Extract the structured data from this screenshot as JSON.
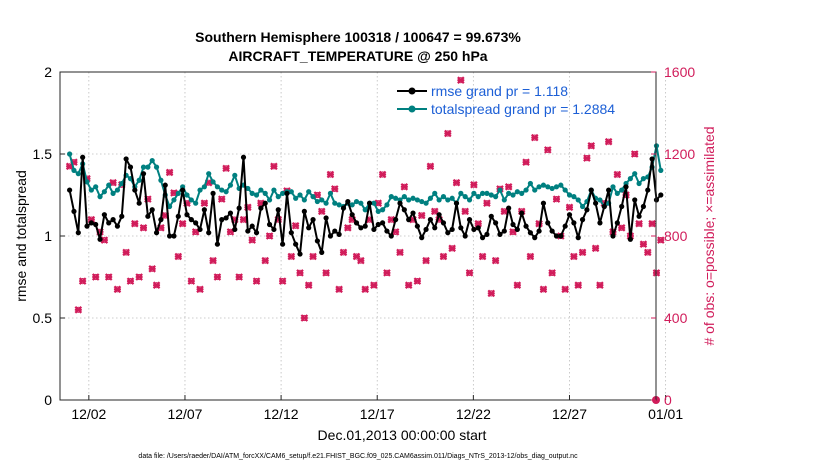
{
  "chart_data": {
    "type": "line",
    "title": "Southern Hemisphere 100318 / 100647 = 99.673%",
    "subtitle": "AIRCRAFT_TEMPERATURE @ 250 hPa",
    "xlabel": "Dec.01,2013 00:00:00 start",
    "ylabel_left": "rmse and totalspread",
    "ylabel_right": "# of obs: o=possible; ×=assimilated",
    "ylim_left": [
      0,
      2
    ],
    "ylim_right": [
      0,
      1600
    ],
    "xlim": [
      0.5,
      31.5
    ],
    "x_ticks": [
      2,
      7,
      12,
      17,
      22,
      27,
      32
    ],
    "x_tick_labels": [
      "12/02",
      "12/07",
      "12/12",
      "12/17",
      "12/22",
      "12/27",
      "01/01"
    ],
    "y_ticks_left": [
      0,
      0.5,
      1,
      1.5,
      2
    ],
    "y_tick_labels_left": [
      "0",
      "0.5",
      "1",
      "1.5",
      "2"
    ],
    "y_ticks_right": [
      0,
      400,
      800,
      1200,
      1600
    ],
    "y_tick_labels_right": [
      "0",
      "400",
      "800",
      "1200",
      "1600"
    ],
    "footer": "data file: /Users/raeder/DAI/ATM_forcXX/CAM6_setup/f.e21.FHIST_BGC.f09_025.CAM6assim.011/Diags_NTrS_2013-12/obs_diag_output.nc",
    "legend_position": "top-right",
    "colors": {
      "rmse": "#000000",
      "spread": "#008080",
      "obs": "#d11d5b",
      "legend_text": "#1c5fd6"
    },
    "series": [
      {
        "name": "rmse grand pr = 1.118",
        "axis": "left",
        "color": "#000000",
        "values": [
          1.28,
          1.15,
          1.02,
          1.48,
          1.06,
          1.08,
          1.07,
          0.98,
          1.13,
          1.08,
          1.1,
          1.06,
          1.12,
          1.47,
          1.42,
          1.28,
          1.2,
          1.38,
          1.12,
          1.16,
          1.02,
          1.1,
          1.31,
          1.0,
          1.0,
          1.12,
          1.28,
          1.13,
          1.1,
          1.08,
          1.04,
          1.16,
          1.02,
          1.26,
          0.95,
          1.1,
          1.11,
          1.14,
          1.04,
          1.17,
          1.48,
          1.03,
          1.06,
          1.02,
          1.17,
          1.2,
          1.07,
          1.04,
          1.16,
          0.95,
          1.26,
          1.02,
          0.95,
          0.89,
          1.15,
          1.05,
          1.1,
          0.97,
          0.9,
          1.11,
          1.0,
          1.03,
          1.01,
          1.17,
          1.21,
          1.13,
          1.08,
          1.05,
          1.06,
          1.2,
          1.04,
          1.07,
          1.08,
          1.03,
          1.0,
          1.1,
          1.2,
          1.16,
          1.1,
          1.14,
          1.06,
          0.99,
          1.04,
          1.1,
          1.05,
          1.13,
          1.08,
          1.02,
          1.04,
          1.2,
          1.05,
          1.0,
          1.1,
          1.04,
          1.05,
          0.99,
          1.01,
          1.12,
          1.08,
          1.01,
          1.03,
          1.17,
          1.07,
          1.04,
          1.14,
          1.06,
          1.02,
          0.99,
          1.03,
          1.2,
          1.08,
          1.03,
          1.0,
          1.0,
          1.06,
          1.13,
          1.08,
          0.99,
          1.1,
          1.16,
          1.28,
          1.2,
          1.08,
          1.18,
          1.28,
          1.0,
          1.08,
          1.18,
          1.3,
          0.98,
          1.22,
          1.12,
          1.18,
          1.28,
          1.47,
          1.22,
          1.25
        ]
      },
      {
        "name": "totalspread grand pr = 1.2884",
        "axis": "left",
        "color": "#008080",
        "values": [
          1.5,
          1.4,
          1.38,
          1.44,
          1.33,
          1.28,
          1.3,
          1.24,
          1.27,
          1.31,
          1.26,
          1.28,
          1.32,
          1.37,
          1.35,
          1.3,
          1.34,
          1.42,
          1.42,
          1.46,
          1.42,
          1.34,
          1.25,
          1.18,
          1.22,
          1.26,
          1.3,
          1.25,
          1.22,
          1.2,
          1.28,
          1.3,
          1.38,
          1.33,
          1.3,
          1.28,
          1.27,
          1.31,
          1.37,
          1.29,
          1.31,
          1.29,
          1.26,
          1.25,
          1.28,
          1.26,
          1.22,
          1.28,
          1.24,
          1.26,
          1.27,
          1.27,
          1.23,
          1.25,
          1.22,
          1.27,
          1.24,
          1.21,
          1.22,
          1.2,
          1.26,
          1.2,
          1.19,
          1.18,
          1.2,
          1.19,
          1.21,
          1.2,
          1.16,
          1.2,
          1.2,
          1.15,
          1.16,
          1.19,
          1.24,
          1.23,
          1.22,
          1.24,
          1.22,
          1.23,
          1.22,
          1.21,
          1.2,
          1.23,
          1.26,
          1.22,
          1.24,
          1.22,
          1.23,
          1.2,
          1.26,
          1.24,
          1.22,
          1.26,
          1.24,
          1.26,
          1.26,
          1.25,
          1.24,
          1.28,
          1.22,
          1.26,
          1.25,
          1.27,
          1.26,
          1.28,
          1.32,
          1.28,
          1.3,
          1.31,
          1.3,
          1.29,
          1.3,
          1.31,
          1.28,
          1.25,
          1.24,
          1.22,
          1.18,
          1.21,
          1.28,
          1.23,
          1.22,
          1.18,
          1.2,
          1.3,
          1.26,
          1.28,
          1.32,
          1.35,
          1.38,
          1.32,
          1.35,
          1.36,
          1.42,
          1.55,
          1.4
        ]
      },
      {
        "name": "# of obs assimilated",
        "axis": "right",
        "color": "#d11d5b",
        "values": [
          1140,
          1160,
          440,
          580,
          1080,
          880,
          600,
          820,
          780,
          600,
          1060,
          540,
          1050,
          720,
          580,
          860,
          600,
          840,
          980,
          640,
          560,
          840,
          900,
          1110,
          1010,
          700,
          860,
          960,
          580,
          820,
          540,
          960,
          1060,
          680,
          600,
          980,
          1130,
          820,
          880,
          600,
          880,
          940,
          780,
          580,
          960,
          680,
          800,
          1140,
          880,
          580,
          1020,
          700,
          850,
          620,
          400,
          560,
          700,
          1000,
          920,
          620,
          1100,
          1030,
          540,
          720,
          840,
          880,
          700,
          680,
          540,
          880,
          560,
          960,
          1100,
          620,
          880,
          820,
          720,
          1040,
          560,
          880,
          580,
          900,
          680,
          1140,
          920,
          880,
          700,
          1300,
          740,
          1060,
          1560,
          920,
          620,
          1050,
          860,
          700,
          960,
          520,
          680,
          1030,
          920,
          1040,
          820,
          560,
          920,
          1160,
          700,
          1280,
          860,
          540,
          1220,
          620,
          980,
          800,
          540,
          940,
          700,
          560,
          720,
          1180,
          1240,
          740,
          560,
          960,
          1260,
          820,
          1100,
          840,
          1000,
          800,
          1200,
          860,
          760,
          720,
          860,
          620,
          780
        ]
      },
      {
        "name": "# of obs possible",
        "axis": "right",
        "color": "#d11d5b",
        "values": [
          1140,
          1160,
          440,
          580,
          1080,
          880,
          600,
          820,
          780,
          600,
          1060,
          540,
          1050,
          720,
          580,
          860,
          600,
          840,
          980,
          640,
          560,
          840,
          900,
          1110,
          1010,
          700,
          860,
          960,
          580,
          820,
          540,
          960,
          1060,
          680,
          600,
          980,
          1130,
          820,
          880,
          600,
          880,
          940,
          780,
          580,
          960,
          680,
          800,
          1140,
          880,
          580,
          1020,
          700,
          850,
          620,
          400,
          560,
          700,
          1000,
          920,
          620,
          1100,
          1030,
          540,
          720,
          840,
          880,
          700,
          680,
          540,
          880,
          560,
          960,
          1100,
          620,
          880,
          820,
          720,
          1040,
          560,
          880,
          580,
          900,
          680,
          1140,
          920,
          880,
          700,
          1300,
          740,
          1060,
          1560,
          920,
          620,
          1050,
          860,
          700,
          960,
          520,
          680,
          1030,
          920,
          1040,
          820,
          560,
          920,
          1160,
          700,
          1280,
          860,
          540,
          1220,
          620,
          980,
          800,
          540,
          940,
          700,
          560,
          720,
          1180,
          1240,
          740,
          560,
          960,
          1260,
          820,
          1100,
          840,
          1000,
          800,
          1200,
          860,
          760,
          720,
          860,
          620,
          780
        ]
      }
    ]
  }
}
